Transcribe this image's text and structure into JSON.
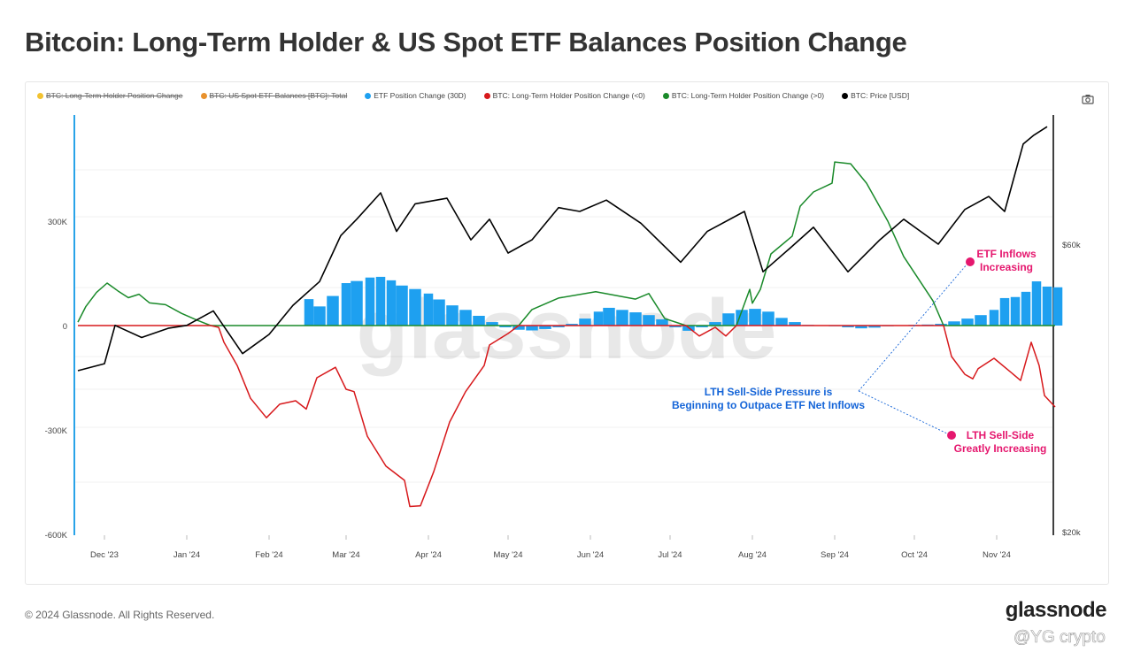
{
  "title": "Bitcoin: Long-Term Holder & US Spot ETF Balances Position Change",
  "legend": [
    {
      "label": "BTC: Long-Term Holder Position Change",
      "color": "#f2c230",
      "disabled": true
    },
    {
      "label": "BTC: US Spot ETF Balances [BTC]: Total",
      "color": "#e8912d",
      "disabled": true
    },
    {
      "label": "ETF Position Change (30D)",
      "color": "#1ea0f0",
      "disabled": false
    },
    {
      "label": "BTC: Long-Term Holder Position Change (<0)",
      "color": "#d7191c",
      "disabled": false
    },
    {
      "label": "BTC: Long-Term Holder Position Change (>0)",
      "color": "#1a8a2a",
      "disabled": false
    },
    {
      "label": "BTC: Price [USD]",
      "color": "#000000",
      "disabled": false
    }
  ],
  "camera_icon": "camera-icon",
  "footer": "© 2024 Glassnode. All Rights Reserved.",
  "logo": "glassnode",
  "watermark": "glassnode",
  "user_watermark": "@YG crypto",
  "chart_data": {
    "type": "line",
    "title": "Bitcoin: Long-Term Holder & US Spot ETF Balances Position Change",
    "x_range": [
      "2023-11-21",
      "2024-11-25"
    ],
    "x_ticks": [
      {
        "date": "2023-12-01",
        "label": "Dec '23"
      },
      {
        "date": "2024-01-01",
        "label": "Jan '24"
      },
      {
        "date": "2024-02-01",
        "label": "Feb '24"
      },
      {
        "date": "2024-03-01",
        "label": "Mar '24"
      },
      {
        "date": "2024-04-01",
        "label": "Apr '24"
      },
      {
        "date": "2024-05-01",
        "label": "May '24"
      },
      {
        "date": "2024-06-01",
        "label": "Jun '24"
      },
      {
        "date": "2024-07-01",
        "label": "Jul '24"
      },
      {
        "date": "2024-08-01",
        "label": "Aug '24"
      },
      {
        "date": "2024-09-01",
        "label": "Sep '24"
      },
      {
        "date": "2024-10-01",
        "label": "Oct '24"
      },
      {
        "date": "2024-11-01",
        "label": "Nov '24"
      }
    ],
    "y_left": {
      "unit": "BTC",
      "range": [
        -600000,
        600000
      ],
      "ticks": [
        {
          "v": 300000,
          "label": "300K"
        },
        {
          "v": 0,
          "label": "0"
        },
        {
          "v": -300000,
          "label": "-300K"
        },
        {
          "v": -600000,
          "label": "-600K"
        }
      ]
    },
    "y_right": {
      "unit": "USD",
      "scale": "log",
      "range": [
        20000,
        100000
      ],
      "ticks": [
        {
          "v": 60000,
          "label": "$60k"
        },
        {
          "v": 20000,
          "label": "$20k"
        }
      ]
    },
    "grid": true,
    "legend_position": "top",
    "series": [
      {
        "name": "ETF Position Change (30D)",
        "type": "bar",
        "axis": "left",
        "color": "#1ea0f0",
        "points": [
          [
            "2024-02-16",
            76000
          ],
          [
            "2024-02-20",
            55000
          ],
          [
            "2024-02-25",
            85000
          ],
          [
            "2024-03-01",
            122000
          ],
          [
            "2024-03-05",
            128000
          ],
          [
            "2024-03-10",
            138000
          ],
          [
            "2024-03-14",
            140000
          ],
          [
            "2024-03-18",
            130000
          ],
          [
            "2024-03-22",
            115000
          ],
          [
            "2024-03-27",
            105000
          ],
          [
            "2024-04-01",
            92000
          ],
          [
            "2024-04-05",
            75000
          ],
          [
            "2024-04-10",
            58000
          ],
          [
            "2024-04-15",
            45000
          ],
          [
            "2024-04-20",
            28000
          ],
          [
            "2024-04-25",
            10000
          ],
          [
            "2024-04-30",
            -5000
          ],
          [
            "2024-05-05",
            -12000
          ],
          [
            "2024-05-10",
            -14000
          ],
          [
            "2024-05-15",
            -10000
          ],
          [
            "2024-05-20",
            -5000
          ],
          [
            "2024-05-25",
            5000
          ],
          [
            "2024-05-30",
            20000
          ],
          [
            "2024-06-04",
            40000
          ],
          [
            "2024-06-08",
            51000
          ],
          [
            "2024-06-13",
            45000
          ],
          [
            "2024-06-18",
            38000
          ],
          [
            "2024-06-23",
            30000
          ],
          [
            "2024-06-28",
            18000
          ],
          [
            "2024-07-03",
            -5000
          ],
          [
            "2024-07-08",
            -15000
          ],
          [
            "2024-07-13",
            -5000
          ],
          [
            "2024-07-18",
            10000
          ],
          [
            "2024-07-23",
            35000
          ],
          [
            "2024-07-28",
            45000
          ],
          [
            "2024-08-02",
            48000
          ],
          [
            "2024-08-07",
            40000
          ],
          [
            "2024-08-12",
            22000
          ],
          [
            "2024-08-17",
            10000
          ],
          [
            "2024-08-22",
            2000
          ],
          [
            "2024-08-27",
            0
          ],
          [
            "2024-09-01",
            -2000
          ],
          [
            "2024-09-06",
            -5000
          ],
          [
            "2024-09-11",
            -8000
          ],
          [
            "2024-09-16",
            -6000
          ],
          [
            "2024-09-21",
            -2000
          ],
          [
            "2024-09-26",
            1000
          ],
          [
            "2024-10-01",
            2000
          ],
          [
            "2024-10-06",
            3000
          ],
          [
            "2024-10-11",
            5000
          ],
          [
            "2024-10-16",
            12000
          ],
          [
            "2024-10-21",
            20000
          ],
          [
            "2024-10-26",
            30000
          ],
          [
            "2024-10-31",
            45000
          ],
          [
            "2024-11-04",
            79000
          ],
          [
            "2024-11-08",
            82000
          ],
          [
            "2024-11-12",
            97000
          ],
          [
            "2024-11-16",
            127000
          ],
          [
            "2024-11-20",
            112000
          ],
          [
            "2024-11-24",
            110000
          ]
        ]
      },
      {
        "name": "BTC: Long-Term Holder Position Change",
        "type": "line",
        "axis": "left",
        "color_negative": "#d7191c",
        "color_positive": "#1a8a2a",
        "points": [
          [
            "2023-11-21",
            10000
          ],
          [
            "2023-11-24",
            55000
          ],
          [
            "2023-11-28",
            95000
          ],
          [
            "2023-12-02",
            122000
          ],
          [
            "2023-12-06",
            100000
          ],
          [
            "2023-12-10",
            80000
          ],
          [
            "2023-12-14",
            90000
          ],
          [
            "2023-12-18",
            65000
          ],
          [
            "2023-12-24",
            60000
          ],
          [
            "2023-12-30",
            35000
          ],
          [
            "2024-01-05",
            15000
          ],
          [
            "2024-01-10",
            0
          ],
          [
            "2024-01-13",
            -5000
          ],
          [
            "2024-01-15",
            -48000
          ],
          [
            "2024-01-20",
            -115000
          ],
          [
            "2024-01-25",
            -209000
          ],
          [
            "2024-01-31",
            -265000
          ],
          [
            "2024-02-05",
            -226000
          ],
          [
            "2024-02-11",
            -216000
          ],
          [
            "2024-02-15",
            -240000
          ],
          [
            "2024-02-19",
            -150000
          ],
          [
            "2024-02-26",
            -120000
          ],
          [
            "2024-03-01",
            -183000
          ],
          [
            "2024-03-04",
            -190000
          ],
          [
            "2024-03-09",
            -318000
          ],
          [
            "2024-03-16",
            -404000
          ],
          [
            "2024-03-23",
            -445000
          ],
          [
            "2024-03-25",
            -520000
          ],
          [
            "2024-03-29",
            -518000
          ],
          [
            "2024-04-03",
            -420000
          ],
          [
            "2024-04-09",
            -277000
          ],
          [
            "2024-04-15",
            -190000
          ],
          [
            "2024-04-22",
            -115000
          ],
          [
            "2024-04-24",
            -56000
          ],
          [
            "2024-05-01",
            -23000
          ],
          [
            "2024-05-05",
            0
          ],
          [
            "2024-05-10",
            46000
          ],
          [
            "2024-05-20",
            79000
          ],
          [
            "2024-06-03",
            97000
          ],
          [
            "2024-06-18",
            76000
          ],
          [
            "2024-06-23",
            92000
          ],
          [
            "2024-06-29",
            20000
          ],
          [
            "2024-07-07",
            0
          ],
          [
            "2024-07-12",
            -30000
          ],
          [
            "2024-07-18",
            -5000
          ],
          [
            "2024-07-22",
            -30000
          ],
          [
            "2024-07-26",
            0
          ],
          [
            "2024-07-31",
            104000
          ],
          [
            "2024-08-01",
            64000
          ],
          [
            "2024-08-04",
            104000
          ],
          [
            "2024-08-08",
            206000
          ],
          [
            "2024-08-16",
            257000
          ],
          [
            "2024-08-19",
            343000
          ],
          [
            "2024-08-24",
            384000
          ],
          [
            "2024-08-31",
            409000
          ],
          [
            "2024-09-01",
            470000
          ],
          [
            "2024-09-07",
            465000
          ],
          [
            "2024-09-13",
            409000
          ],
          [
            "2024-09-21",
            300000
          ],
          [
            "2024-09-27",
            198000
          ],
          [
            "2024-10-08",
            71000
          ],
          [
            "2024-10-12",
            0
          ],
          [
            "2024-10-15",
            -89000
          ],
          [
            "2024-10-20",
            -140000
          ],
          [
            "2024-10-23",
            -153000
          ],
          [
            "2024-10-25",
            -124000
          ],
          [
            "2024-10-31",
            -94000
          ],
          [
            "2024-11-06",
            -132000
          ],
          [
            "2024-11-10",
            -158000
          ],
          [
            "2024-11-14",
            -48000
          ],
          [
            "2024-11-17",
            -115000
          ],
          [
            "2024-11-19",
            -201000
          ],
          [
            "2024-11-23",
            -234000
          ]
        ]
      },
      {
        "name": "BTC: Price [USD]",
        "type": "line",
        "axis": "right",
        "color": "#000000",
        "points": [
          [
            "2023-11-21",
            37000
          ],
          [
            "2023-12-01",
            38000
          ],
          [
            "2023-12-05",
            44000
          ],
          [
            "2023-12-15",
            42000
          ],
          [
            "2023-12-25",
            43500
          ],
          [
            "2024-01-01",
            44000
          ],
          [
            "2024-01-11",
            46500
          ],
          [
            "2024-01-22",
            39500
          ],
          [
            "2024-02-01",
            42500
          ],
          [
            "2024-02-10",
            47500
          ],
          [
            "2024-02-20",
            52000
          ],
          [
            "2024-02-28",
            62000
          ],
          [
            "2024-03-05",
            66000
          ],
          [
            "2024-03-14",
            73000
          ],
          [
            "2024-03-20",
            63000
          ],
          [
            "2024-03-27",
            70000
          ],
          [
            "2024-04-08",
            71500
          ],
          [
            "2024-04-17",
            61000
          ],
          [
            "2024-04-24",
            66000
          ],
          [
            "2024-05-01",
            58000
          ],
          [
            "2024-05-10",
            61000
          ],
          [
            "2024-05-20",
            69000
          ],
          [
            "2024-05-28",
            68000
          ],
          [
            "2024-06-07",
            71000
          ],
          [
            "2024-06-20",
            65000
          ],
          [
            "2024-07-05",
            56000
          ],
          [
            "2024-07-15",
            63000
          ],
          [
            "2024-07-29",
            68000
          ],
          [
            "2024-08-05",
            54000
          ],
          [
            "2024-08-15",
            59000
          ],
          [
            "2024-08-24",
            64000
          ],
          [
            "2024-09-06",
            54000
          ],
          [
            "2024-09-18",
            61000
          ],
          [
            "2024-09-27",
            66000
          ],
          [
            "2024-10-10",
            60000
          ],
          [
            "2024-10-20",
            68500
          ],
          [
            "2024-10-29",
            72000
          ],
          [
            "2024-11-04",
            68000
          ],
          [
            "2024-11-11",
            88000
          ],
          [
            "2024-11-15",
            91000
          ],
          [
            "2024-11-20",
            94000
          ]
        ]
      }
    ],
    "annotations": [
      {
        "text_lines": [
          "ETF Inflows",
          "Increasing"
        ],
        "color": "#e5176e"
      },
      {
        "text_lines": [
          "LTH Sell-Side",
          "Greatly Increasing"
        ],
        "color": "#e5176e"
      },
      {
        "text_lines": [
          "LTH Sell-Side Pressure is",
          "Beginning to Outpace ETF Net Inflows"
        ],
        "color": "#1565d8"
      }
    ]
  }
}
